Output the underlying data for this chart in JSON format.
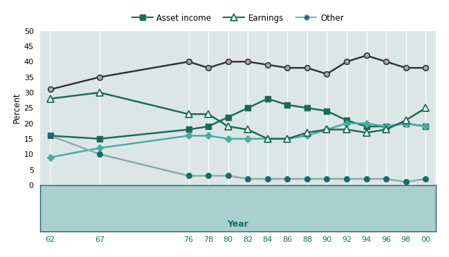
{
  "years": [
    62,
    67,
    76,
    78,
    80,
    82,
    84,
    86,
    88,
    90,
    92,
    94,
    96,
    98,
    100
  ],
  "year_labels": [
    "62",
    "67",
    "76",
    "78",
    "80",
    "82",
    "84",
    "86",
    "88",
    "90",
    "92",
    "94",
    "96",
    "98",
    "00"
  ],
  "social_security": [
    31,
    35,
    40,
    38,
    40,
    40,
    39,
    38,
    38,
    36,
    40,
    42,
    40,
    38,
    38
  ],
  "asset_income": [
    16,
    15,
    18,
    19,
    22,
    25,
    28,
    26,
    25,
    24,
    21,
    19,
    19,
    20,
    19
  ],
  "pensions": [
    9,
    12,
    16,
    16,
    15,
    15,
    15,
    15,
    16,
    18,
    20,
    20,
    19,
    20,
    19
  ],
  "earnings": [
    28,
    30,
    23,
    23,
    19,
    18,
    15,
    15,
    17,
    18,
    18,
    17,
    18,
    21,
    25
  ],
  "other": [
    16,
    10,
    3,
    3,
    3,
    2,
    2,
    2,
    2,
    2,
    2,
    2,
    2,
    1,
    2
  ],
  "ylabel": "Percent",
  "xlabel": "Year",
  "ylim": [
    0,
    50
  ],
  "yticks": [
    0,
    5,
    10,
    15,
    20,
    25,
    30,
    35,
    40,
    45,
    50
  ],
  "bg_plot": "#dce6e6",
  "bg_figure": "#ffffff",
  "bg_xband": "#aacfcf",
  "xband_text_color": "#1a6b6b",
  "grid_color": "#ffffff",
  "ss_color": "#333333",
  "ss_marker_face": "#aaaaaa",
  "asset_color": "#1a6b55",
  "asset_marker": "#1a6b55",
  "pension_color": "#4aada0",
  "pension_marker": "#4aada0",
  "earnings_color": "#1a6b55",
  "earnings_marker_face": "#ffffff",
  "other_color": "#8aacac",
  "other_marker": "#1a6b6b"
}
